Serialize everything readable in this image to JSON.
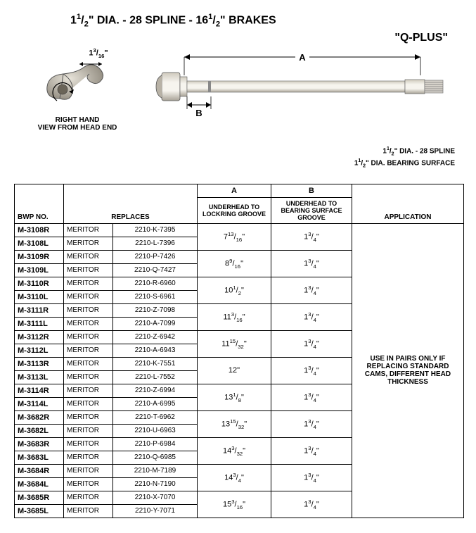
{
  "title_parts": [
    "1",
    "1",
    "2",
    "\" DIA. - 28 SPLINE - 16",
    "1",
    "2",
    "\" BRAKES"
  ],
  "qplus": "\"Q-PLUS\"",
  "cam_dim": {
    "whole": "1",
    "num": "3",
    "den": "16",
    "suffix": "\""
  },
  "cam_caption1": "RIGHT HAND",
  "cam_caption2": "VIEW FROM HEAD END",
  "dim_a": "A",
  "dim_b": "B",
  "spec1_parts": [
    "1",
    "1",
    "2",
    "\" DIA. - 28 SPLINE"
  ],
  "spec2_parts": [
    "1",
    "1",
    "2",
    "\" DIA. BEARING SURFACE"
  ],
  "hdr_bwp": "BWP NO.",
  "hdr_replaces": "REPLACES",
  "hdr_a_top": "A",
  "hdr_a_sub": "UNDERHEAD TO LOCKRING GROOVE",
  "hdr_b_top": "B",
  "hdr_b_sub": "UNDERHEAD TO BEARING SURFACE GROOVE",
  "hdr_app": "APPLICATION",
  "app_text": "USE IN PAIRS ONLY IF REPLACING STANDARD CAMS, DIFFERENT HEAD THICKNESS",
  "groups": [
    {
      "a": {
        "w": "7",
        "n": "13",
        "d": "16"
      },
      "b": {
        "w": "1",
        "n": "3",
        "d": "4"
      },
      "rows": [
        {
          "bwp": "M-3108R",
          "mfr": "MERITOR",
          "part": "2210-K-7395"
        },
        {
          "bwp": "M-3108L",
          "mfr": "MERITOR",
          "part": "2210-L-7396"
        }
      ]
    },
    {
      "a": {
        "w": "8",
        "n": "9",
        "d": "16"
      },
      "b": {
        "w": "1",
        "n": "3",
        "d": "4"
      },
      "rows": [
        {
          "bwp": "M-3109R",
          "mfr": "MERITOR",
          "part": "2210-P-7426"
        },
        {
          "bwp": "M-3109L",
          "mfr": "MERITOR",
          "part": "2210-Q-7427"
        }
      ]
    },
    {
      "a": {
        "w": "10",
        "n": "1",
        "d": "2"
      },
      "b": {
        "w": "1",
        "n": "3",
        "d": "4"
      },
      "rows": [
        {
          "bwp": "M-3110R",
          "mfr": "MERITOR",
          "part": "2210-R-6960"
        },
        {
          "bwp": "M-3110L",
          "mfr": "MERITOR",
          "part": "2210-S-6961"
        }
      ]
    },
    {
      "a": {
        "w": "11",
        "n": "3",
        "d": "16"
      },
      "b": {
        "w": "1",
        "n": "3",
        "d": "4"
      },
      "rows": [
        {
          "bwp": "M-3111R",
          "mfr": "MERITOR",
          "part": "2210-Z-7098"
        },
        {
          "bwp": "M-3111L",
          "mfr": "MERITOR",
          "part": "2210-A-7099"
        }
      ]
    },
    {
      "a": {
        "w": "11",
        "n": "15",
        "d": "32"
      },
      "b": {
        "w": "1",
        "n": "3",
        "d": "4"
      },
      "rows": [
        {
          "bwp": "M-3112R",
          "mfr": "MERITOR",
          "part": "2210-Z-6942"
        },
        {
          "bwp": "M-3112L",
          "mfr": "MERITOR",
          "part": "2210-A-6943"
        }
      ]
    },
    {
      "a": {
        "w": "12",
        "n": "",
        "d": ""
      },
      "b": {
        "w": "1",
        "n": "3",
        "d": "4"
      },
      "rows": [
        {
          "bwp": "M-3113R",
          "mfr": "MERITOR",
          "part": "2210-K-7551"
        },
        {
          "bwp": "M-3113L",
          "mfr": "MERITOR",
          "part": "2210-L-7552"
        }
      ]
    },
    {
      "a": {
        "w": "13",
        "n": "1",
        "d": "8"
      },
      "b": {
        "w": "1",
        "n": "3",
        "d": "4"
      },
      "rows": [
        {
          "bwp": "M-3114R",
          "mfr": "MERITOR",
          "part": "2210-Z-6994"
        },
        {
          "bwp": "M-3114L",
          "mfr": "MERITOR",
          "part": "2210-A-6995"
        }
      ]
    },
    {
      "a": {
        "w": "13",
        "n": "15",
        "d": "32"
      },
      "b": {
        "w": "1",
        "n": "3",
        "d": "4"
      },
      "rows": [
        {
          "bwp": "M-3682R",
          "mfr": "MERITOR",
          "part": "2210-T-6962"
        },
        {
          "bwp": "M-3682L",
          "mfr": "MERITOR",
          "part": "2210-U-6963"
        }
      ]
    },
    {
      "a": {
        "w": "14",
        "n": "3",
        "d": "32"
      },
      "b": {
        "w": "1",
        "n": "3",
        "d": "4"
      },
      "rows": [
        {
          "bwp": "M-3683R",
          "mfr": "MERITOR",
          "part": "2210-P-6984"
        },
        {
          "bwp": "M-3683L",
          "mfr": "MERITOR",
          "part": "2210-Q-6985"
        }
      ]
    },
    {
      "a": {
        "w": "14",
        "n": "3",
        "d": "4"
      },
      "b": {
        "w": "1",
        "n": "3",
        "d": "4"
      },
      "rows": [
        {
          "bwp": "M-3684R",
          "mfr": "MERITOR",
          "part": "2210-M-7189"
        },
        {
          "bwp": "M-3684L",
          "mfr": "MERITOR",
          "part": "2210-N-7190"
        }
      ]
    },
    {
      "a": {
        "w": "15",
        "n": "3",
        "d": "16"
      },
      "b": {
        "w": "1",
        "n": "3",
        "d": "4"
      },
      "rows": [
        {
          "bwp": "M-3685R",
          "mfr": "MERITOR",
          "part": "2210-X-7070"
        },
        {
          "bwp": "M-3685L",
          "mfr": "MERITOR",
          "part": "2210-Y-7071"
        }
      ]
    }
  ],
  "colors": {
    "metal_light": "#d8d4cc",
    "metal_mid": "#b8b2a6",
    "metal_dark": "#7a756a",
    "shaft_hi": "#f2f0ea",
    "black": "#000000"
  }
}
